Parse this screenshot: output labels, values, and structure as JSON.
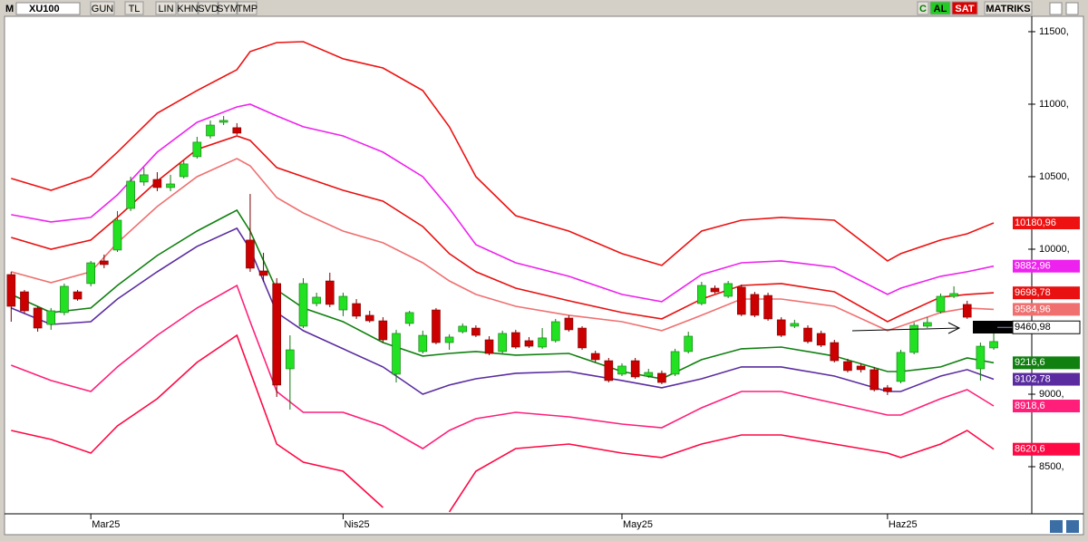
{
  "toolbar": {
    "menu": "M",
    "symbol": "XU100",
    "buttons": [
      "GUN",
      "TL",
      "LIN",
      "KHN",
      "SVD",
      "SYM",
      "TMP"
    ],
    "right": [
      "C",
      "AL",
      "SAT",
      "MATRIKS"
    ]
  },
  "chart_data": {
    "type": "candlestick",
    "categories": [
      null,
      null,
      null,
      null,
      null,
      null,
      "Mar25",
      null,
      null,
      null,
      null,
      null,
      null,
      null,
      null,
      null,
      null,
      null,
      null,
      null,
      null,
      null,
      null,
      null,
      null,
      "Nis25",
      null,
      null,
      null,
      null,
      null,
      null,
      null,
      null,
      null,
      null,
      null,
      null,
      null,
      null,
      null,
      null,
      null,
      null,
      null,
      null,
      "May25",
      null,
      null,
      null,
      null,
      null,
      null,
      null,
      null,
      null,
      null,
      null,
      null,
      null,
      null,
      null,
      null,
      null,
      null,
      null,
      "Haz25",
      null,
      null,
      null,
      null,
      null,
      null,
      null,
      null
    ],
    "open": [
      9825,
      9706,
      9594,
      9481,
      9563,
      9706,
      9763,
      9919,
      9994,
      10281,
      10463,
      10481,
      10425,
      10500,
      10638,
      10781,
      10875,
      10838,
      10063,
      9850,
      9763,
      9175,
      9469,
      9625,
      9781,
      9581,
      9625,
      9544,
      9506,
      9138,
      9488,
      9294,
      9581,
      9356,
      9431,
      9456,
      9375,
      9294,
      9425,
      9369,
      9325,
      9369,
      9525,
      9456,
      9281,
      9231,
      9138,
      9231,
      9125,
      9144,
      9138,
      9294,
      9625,
      9731,
      9675,
      9738,
      9688,
      9681,
      9513,
      9469,
      9456,
      9419,
      9356,
      9225,
      9194,
      9169,
      9044,
      9088,
      9288,
      9469,
      9569,
      9675,
      9619,
      9175,
      9319
    ],
    "high": [
      9844,
      9719,
      9606,
      9594,
      9763,
      9719,
      9919,
      9963,
      10263,
      10500,
      10563,
      10531,
      10513,
      10613,
      10775,
      10888,
      10919,
      10869,
      10381,
      9975,
      9800,
      9406,
      9800,
      9700,
      9838,
      9700,
      9656,
      9575,
      9531,
      9444,
      9575,
      9438,
      9594,
      9413,
      9488,
      9475,
      9400,
      9438,
      9444,
      9394,
      9456,
      9519,
      9544,
      9469,
      9300,
      9250,
      9213,
      9250,
      9175,
      9163,
      9313,
      9431,
      9775,
      9750,
      9781,
      9756,
      9706,
      9700,
      9531,
      9513,
      9475,
      9438,
      9375,
      9244,
      9213,
      9188,
      9063,
      9306,
      9494,
      9531,
      9694,
      9744,
      9644,
      9356,
      9463
    ],
    "low": [
      9500,
      9556,
      9431,
      9444,
      9544,
      9644,
      9744,
      9869,
      9981,
      10263,
      10438,
      10400,
      10400,
      10488,
      10625,
      10763,
      10856,
      10788,
      9844,
      9775,
      8981,
      8894,
      9456,
      9606,
      9600,
      9538,
      9519,
      9494,
      9356,
      9081,
      9469,
      9281,
      9344,
      9306,
      9419,
      9394,
      9269,
      9281,
      9313,
      9319,
      9313,
      9356,
      9431,
      9306,
      9219,
      9081,
      9125,
      9106,
      9113,
      9069,
      9125,
      9281,
      9613,
      9694,
      9663,
      9538,
      9531,
      9506,
      9394,
      9456,
      9350,
      9325,
      9219,
      9150,
      9150,
      9019,
      8994,
      9075,
      9275,
      9456,
      9556,
      9663,
      9519,
      9094,
      9306
    ],
    "close": [
      9606,
      9575,
      9456,
      9575,
      9744,
      9656,
      9906,
      9894,
      10200,
      10469,
      10513,
      10425,
      10450,
      10588,
      10738,
      10856,
      10888,
      10800,
      9869,
      9819,
      9063,
      9306,
      9763,
      9669,
      9619,
      9675,
      9538,
      9506,
      9375,
      9419,
      9563,
      9406,
      9356,
      9394,
      9469,
      9406,
      9281,
      9419,
      9325,
      9331,
      9388,
      9500,
      9444,
      9319,
      9238,
      9094,
      9194,
      9119,
      9150,
      9081,
      9294,
      9400,
      9750,
      9706,
      9763,
      9550,
      9544,
      9519,
      9406,
      9488,
      9363,
      9338,
      9231,
      9163,
      9169,
      9031,
      9019,
      9288,
      9475,
      9494,
      9675,
      9694,
      9531,
      9331,
      9363
    ],
    "up_color": "#22e022",
    "down_color": "#cc0000",
    "lines": [
      {
        "color": "#ee1111",
        "x": [
          0,
          3,
          6,
          8,
          11,
          14,
          17,
          18,
          20,
          22,
          25,
          28,
          31,
          33,
          35,
          38,
          42,
          46,
          49,
          52,
          55,
          58,
          62,
          66,
          67,
          70,
          72,
          74
        ],
        "values": [
          10488,
          10406,
          10500,
          10669,
          10938,
          11094,
          11238,
          11363,
          11425,
          11431,
          11313,
          11250,
          11094,
          10844,
          10500,
          10231,
          10125,
          9969,
          9888,
          10125,
          10200,
          10219,
          10200,
          9919,
          9969,
          10063,
          10106,
          10181
        ]
      },
      {
        "color": "#ee22ee",
        "x": [
          0,
          3,
          6,
          8,
          11,
          14,
          17,
          18,
          20,
          22,
          25,
          28,
          31,
          33,
          35,
          38,
          42,
          46,
          49,
          52,
          55,
          58,
          62,
          66,
          67,
          70,
          72,
          74
        ],
        "values": [
          10238,
          10188,
          10219,
          10375,
          10669,
          10875,
          10981,
          11000,
          10919,
          10844,
          10781,
          10669,
          10500,
          10281,
          10031,
          9906,
          9813,
          9688,
          9638,
          9825,
          9906,
          9919,
          9875,
          9688,
          9731,
          9813,
          9844,
          9883
        ]
      },
      {
        "color": "#e81010",
        "x": [
          0,
          3,
          6,
          8,
          11,
          14,
          17,
          18,
          20,
          22,
          25,
          28,
          31,
          33,
          35,
          38,
          42,
          46,
          49,
          52,
          55,
          58,
          62,
          66,
          67,
          70,
          72,
          74
        ],
        "values": [
          10081,
          10000,
          10063,
          10219,
          10469,
          10688,
          10781,
          10750,
          10563,
          10500,
          10406,
          10331,
          10156,
          9969,
          9844,
          9731,
          9644,
          9563,
          9519,
          9656,
          9750,
          9763,
          9706,
          9500,
          9544,
          9669,
          9688,
          9699
        ]
      },
      {
        "color": "#f07070",
        "x": [
          0,
          3,
          6,
          8,
          11,
          14,
          17,
          18,
          20,
          22,
          25,
          28,
          31,
          33,
          35,
          38,
          42,
          46,
          49,
          52,
          55,
          58,
          62,
          66,
          67,
          70,
          72,
          74
        ],
        "values": [
          9844,
          9769,
          9844,
          10044,
          10294,
          10500,
          10625,
          10575,
          10356,
          10250,
          10125,
          10044,
          9906,
          9781,
          9688,
          9606,
          9544,
          9500,
          9438,
          9544,
          9656,
          9656,
          9606,
          9438,
          9469,
          9563,
          9594,
          9585
        ]
      },
      {
        "color": "#108010",
        "x": [
          0,
          3,
          6,
          8,
          11,
          14,
          17,
          18,
          20,
          22,
          25,
          28,
          31,
          33,
          35,
          38,
          42,
          46,
          49,
          52,
          55,
          58,
          62,
          66,
          67,
          70,
          72,
          74
        ],
        "values": [
          9688,
          9563,
          9594,
          9750,
          9956,
          10125,
          10269,
          10125,
          9719,
          9594,
          9500,
          9356,
          9263,
          9281,
          9294,
          9269,
          9281,
          9156,
          9106,
          9238,
          9313,
          9325,
          9263,
          9156,
          9156,
          9188,
          9250,
          9217
        ]
      },
      {
        "color": "#5a2ca0",
        "x": [
          0,
          3,
          6,
          8,
          11,
          14,
          17,
          18,
          20,
          22,
          25,
          28,
          31,
          33,
          35,
          38,
          42,
          46,
          49,
          52,
          55,
          58,
          62,
          66,
          67,
          70,
          72,
          74
        ],
        "values": [
          9594,
          9481,
          9500,
          9656,
          9844,
          10019,
          10144,
          10000,
          9563,
          9438,
          9313,
          9188,
          9000,
          9063,
          9106,
          9144,
          9156,
          9094,
          9044,
          9106,
          9188,
          9188,
          9125,
          9019,
          9019,
          9125,
          9169,
          9103
        ]
      },
      {
        "color": "#ff1f7a",
        "x": [
          0,
          3,
          6,
          8,
          11,
          14,
          17,
          18,
          20,
          22,
          25,
          28,
          31,
          33,
          35,
          38,
          42,
          46,
          49,
          52,
          55,
          58,
          62,
          66,
          67,
          70,
          72,
          74
        ],
        "values": [
          9200,
          9094,
          9019,
          9188,
          9406,
          9594,
          9750,
          9500,
          9019,
          8875,
          8875,
          8781,
          8625,
          8750,
          8831,
          8875,
          8844,
          8794,
          8769,
          8906,
          9019,
          9019,
          8938,
          8856,
          8856,
          8969,
          9031,
          8919
        ]
      },
      {
        "color": "#ff0844",
        "x": [
          0,
          3,
          6,
          8,
          11,
          14,
          17,
          18,
          20,
          22,
          25,
          28,
          31,
          33,
          35,
          38,
          42,
          46,
          49,
          52,
          55,
          58,
          62,
          66,
          67,
          70,
          72,
          74
        ],
        "values": [
          8750,
          8688,
          8594,
          8781,
          8969,
          9219,
          9406,
          9156,
          8656,
          8531,
          8469,
          8219,
          null,
          8188,
          8469,
          8625,
          8656,
          8594,
          8563,
          8656,
          8719,
          8719,
          8656,
          8594,
          8563,
          8656,
          8750,
          8621
        ]
      }
    ],
    "price_labels": [
      {
        "value": 10180.96,
        "label": "10180,96",
        "color": "#ee1111"
      },
      {
        "value": 9882.96,
        "label": "9882,96",
        "color": "#ee22ee"
      },
      {
        "value": 9698.78,
        "label": "9698,78",
        "color": "#e81010"
      },
      {
        "value": 9584.96,
        "label": "9584,96",
        "color": "#f07070"
      },
      {
        "value": 9460.98,
        "label": "9460,98",
        "color": "#ffffff"
      },
      {
        "value": 9216.6,
        "label": "9216,6",
        "color": "#108010"
      },
      {
        "value": 9102.78,
        "label": "9102,78",
        "color": "#5a2ca0"
      },
      {
        "value": 8918.6,
        "label": "8918,6",
        "color": "#ff1f7a"
      },
      {
        "value": 8620.6,
        "label": "8620,6",
        "color": "#ff0844"
      }
    ],
    "ylim": [
      8175,
      11606
    ],
    "yticks": [
      {
        "value": 8500,
        "label": "8500,"
      },
      {
        "value": 9000,
        "label": "9000,"
      },
      {
        "value": 10000,
        "label": "10000,"
      },
      {
        "value": 10500,
        "label": "10500,"
      },
      {
        "value": 11000,
        "label": "11000,"
      },
      {
        "value": 11500,
        "label": "11500,"
      }
    ]
  }
}
